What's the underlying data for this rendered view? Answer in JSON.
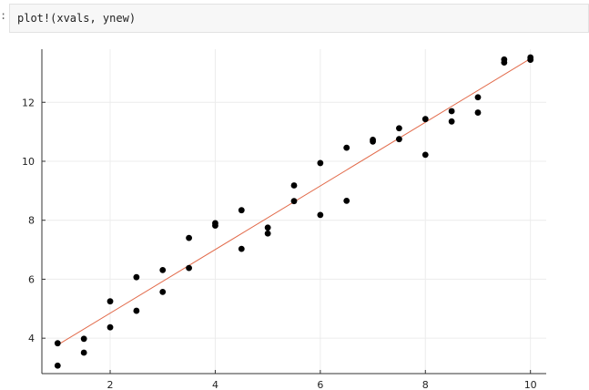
{
  "cell": {
    "prompt": ":",
    "code": "plot!(xvals, ynew)"
  },
  "chart_data": {
    "type": "scatter",
    "title": "",
    "xlabel": "",
    "ylabel": "",
    "xlim": [
      0.7,
      10.3
    ],
    "ylim": [
      2.8,
      13.8
    ],
    "xticks": [
      2,
      4,
      6,
      8,
      10
    ],
    "yticks": [
      4,
      6,
      8,
      10,
      12
    ],
    "grid": true,
    "legend": "none",
    "colors": {
      "points": "#000000",
      "line": "#e26a4a",
      "grid": "#ececec",
      "axis": "#333333"
    },
    "series": [
      {
        "type": "scatter",
        "x": [
          1,
          1,
          1.5,
          1.5,
          2,
          2,
          2.5,
          2.5,
          3,
          3,
          3.5,
          3.5,
          4,
          4,
          4.5,
          4.5,
          5,
          5,
          5.5,
          5.5,
          6,
          6,
          6.5,
          6.5,
          7,
          7,
          7.5,
          7.5,
          8,
          8,
          8.5,
          8.5,
          9,
          9,
          9.5,
          9.5,
          10,
          10
        ],
        "y": [
          3.83,
          3.07,
          3.98,
          3.51,
          5.25,
          4.37,
          6.07,
          4.93,
          6.31,
          5.57,
          7.4,
          6.38,
          7.9,
          7.82,
          8.34,
          7.03,
          7.75,
          7.55,
          9.18,
          8.65,
          9.94,
          8.18,
          10.46,
          8.66,
          10.73,
          10.67,
          11.12,
          10.75,
          11.43,
          10.22,
          11.7,
          11.35,
          12.17,
          11.65,
          13.45,
          13.35,
          13.52,
          13.44
        ]
      },
      {
        "type": "line",
        "x": [
          1,
          10
        ],
        "y": [
          3.77,
          13.48
        ]
      }
    ]
  }
}
